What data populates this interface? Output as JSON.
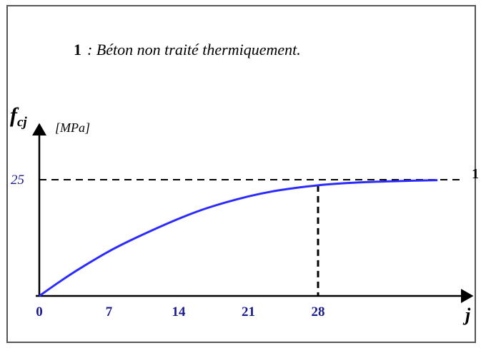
{
  "chart_data": {
    "type": "line",
    "legend_entry": {
      "number": "1",
      "text": ": Béton non traité thermiquement."
    },
    "ylabel": {
      "symbol": "f",
      "subscript": "cj",
      "unit": "[MPa]"
    },
    "xlabel": "j",
    "x_ticks": [
      "0",
      "7",
      "14",
      "21",
      "28"
    ],
    "x_tick_values": [
      0,
      7,
      14,
      21,
      28
    ],
    "y_reference": {
      "value": 25,
      "label": "25"
    },
    "xlim": [
      0,
      42
    ],
    "ylim": [
      0,
      31
    ],
    "series": [
      {
        "name": "1",
        "x": [
          0,
          2,
          4,
          7,
          10,
          14,
          17,
          21,
          24,
          28,
          32,
          36,
          40
        ],
        "y": [
          0,
          3.0,
          5.8,
          9.6,
          12.8,
          16.6,
          19.0,
          21.4,
          22.7,
          23.8,
          24.4,
          24.7,
          24.9
        ]
      }
    ],
    "colors": {
      "curve": "#2b2bff",
      "axes": "#000000",
      "frame": "#555555",
      "tick_labels": "#1a1a8c"
    },
    "grid": false
  }
}
